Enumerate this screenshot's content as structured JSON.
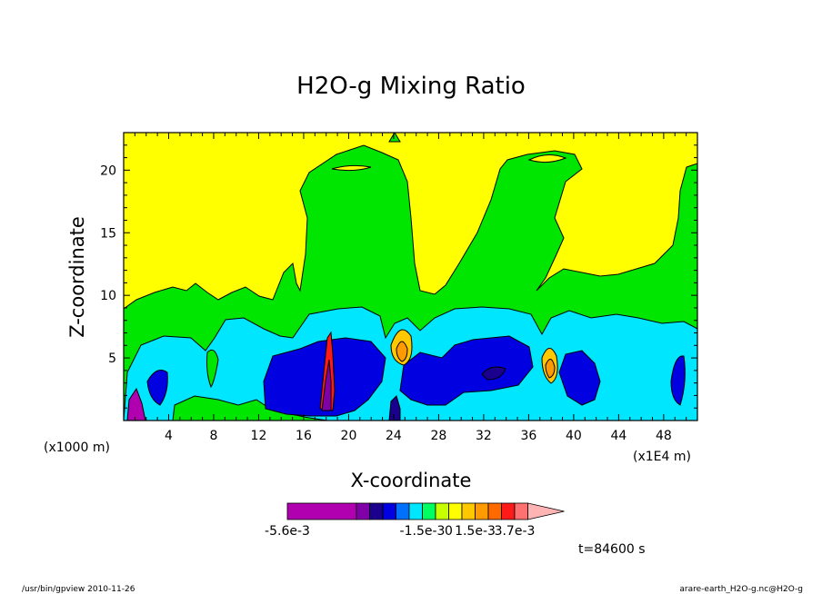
{
  "chart_data": {
    "type": "heatmap",
    "title": "H2O-g Mixing Ratio",
    "xlabel": "X-coordinate",
    "ylabel": "Z-coordinate",
    "x_unit_label": "(x1E4 m)",
    "y_unit_label": "(x1000 m)",
    "xlim": [
      0,
      51
    ],
    "ylim": [
      0,
      23
    ],
    "x_ticks": [
      4,
      8,
      12,
      16,
      20,
      24,
      28,
      32,
      36,
      40,
      44,
      48
    ],
    "y_ticks": [
      5,
      10,
      15,
      20
    ],
    "colorbar": {
      "tick_labels": [
        "-5.6e-3",
        "-1.5e-3",
        "0",
        "1.5e-3",
        "3.7e-3"
      ],
      "colors": [
        "#b000b0",
        "#8000a8",
        "#1a008c",
        "#0000e0",
        "#0070ff",
        "#00e6ff",
        "#00ff60",
        "#c8ff00",
        "#ffff00",
        "#ffc800",
        "#ff9a00",
        "#ff6a00",
        "#ff1a1a",
        "#ff7070",
        "#ffb4b4"
      ]
    },
    "time_label": "t=84600 s",
    "footer_left": "/usr/bin/gpview   2010-11-26",
    "footer_right": "arare-earth_H2O-g.nc@H2O-g"
  }
}
